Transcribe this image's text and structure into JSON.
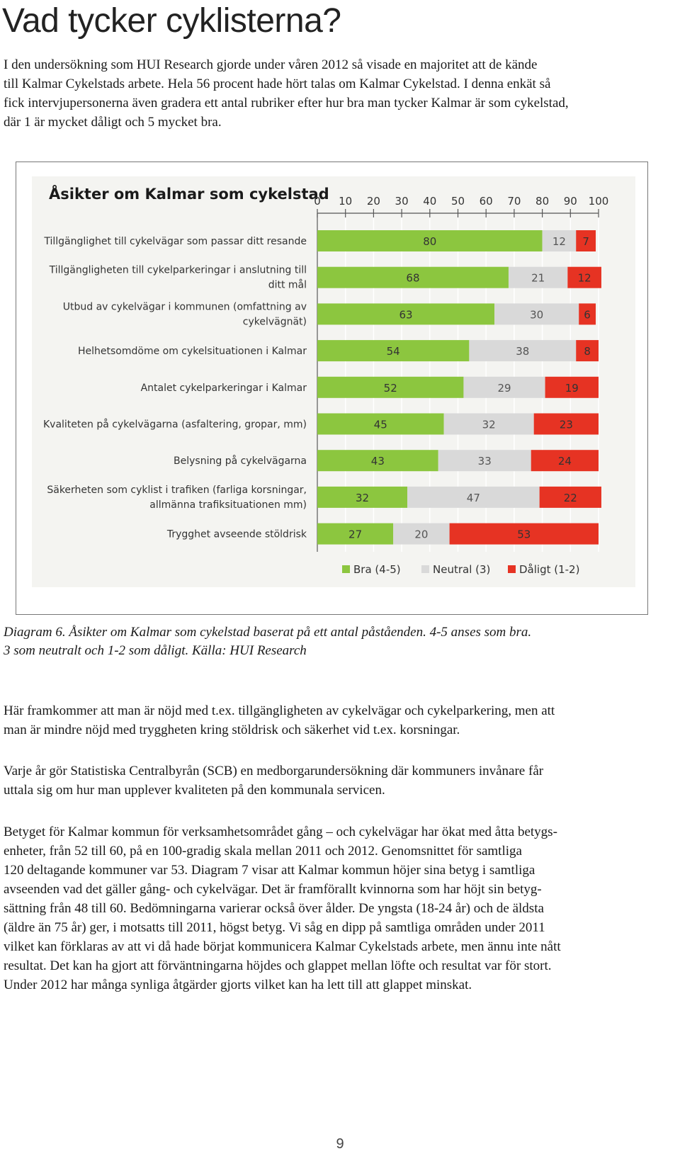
{
  "page": {
    "title": "Vad tycker cyklisterna?",
    "intro_lines": [
      "I den undersökning som HUI Research gjorde under våren 2012 så visade en majoritet att de kände",
      "till Kalmar Cykelstads arbete. Hela 56 procent hade hört talas om Kalmar Cykelstad. I denna enkät så",
      "fick intervjupersonerna även gradera ett antal rubriker efter hur bra man tycker Kalmar är som cykelstad,",
      "där 1 är mycket dåligt och 5 mycket bra."
    ],
    "caption_lines": [
      "Diagram 6. Åsikter om Kalmar som cykelstad baserat på ett antal påståenden. 4-5 anses som bra.",
      "3 som neutralt och 1-2 som dåligt. Källa: HUI Research"
    ],
    "para2_lines": [
      "Här framkommer att man är nöjd med t.ex. tillgängligheten av cykelvägar och cykelparkering, men att",
      "man är mindre nöjd med tryggheten kring stöldrisk och säkerhet vid t.ex. korsningar."
    ],
    "para3_lines": [
      "Varje år gör Statistiska Centralbyrån (SCB) en medborgarundersökning där kommuners invånare får",
      "uttala sig om hur man upplever kvaliteten på den kommunala servicen."
    ],
    "para4_lines": [
      "Betyget för Kalmar kommun för verksamhetsområdet gång – och cykelvägar har ökat med åtta betygs-",
      "enheter, från 52 till 60, på en 100-gradig skala mellan 2011 och 2012. Genomsnittet för samtliga",
      "120 deltagande kommuner var 53. Diagram 7 visar att Kalmar kommun höjer sina betyg i samtliga",
      "avseenden vad det gäller gång- och cykelvägar. Det är framförallt kvinnorna som har höjt sin betyg-",
      "sättning från 48 till 60. Bedömningarna varierar också över ålder. De yngsta (18-24 år) och de äldsta",
      "(äldre än 75 år) ger, i motsatts till 2011, högst betyg. Vi såg en dipp på samtliga områden under 2011",
      "vilket kan förklaras av att vi då hade börjat kommunicera Kalmar Cykelstads arbete, men ännu inte nått",
      "resultat. Det kan ha gjort att förväntningarna höjdes och glappet mellan löfte och resultat var för stort.",
      "Under 2012 har många synliga åtgärder gjorts vilket kan ha lett till att glappet minskat."
    ],
    "page_number": "9"
  },
  "chart_data": {
    "type": "bar",
    "stacked": true,
    "orientation": "horizontal",
    "title": "Åsikter om Kalmar som cykelstad",
    "xlim": [
      0,
      100
    ],
    "xticks": [
      0,
      10,
      20,
      30,
      40,
      50,
      60,
      70,
      80,
      90,
      100
    ],
    "grid": true,
    "legend_position": "bottom",
    "categories": [
      [
        "Tillgänglighet till cykelvägar som passar ditt resande"
      ],
      [
        "Tillgängligheten till cykelparkeringar i anslutning till",
        "ditt mål"
      ],
      [
        "Utbud av cykelvägar i kommunen (omfattning av",
        "cykelvägnät)"
      ],
      [
        "Helhetsomdöme om cykelsituationen i Kalmar"
      ],
      [
        "Antalet cykelparkeringar i Kalmar"
      ],
      [
        "Kvaliteten på cykelvägarna (asfaltering, gropar, mm)"
      ],
      [
        "Belysning på cykelvägarna"
      ],
      [
        "Säkerheten som cyklist i trafiken (farliga korsningar,",
        "allmänna trafiksituationen mm)"
      ],
      [
        "Trygghet avseende stöldrisk"
      ]
    ],
    "series": [
      {
        "name": "Bra (4-5)",
        "color": "#8cc63f",
        "values": [
          80,
          68,
          63,
          54,
          52,
          45,
          43,
          32,
          27
        ]
      },
      {
        "name": "Neutral (3)",
        "color": "#d9d9d9",
        "values": [
          12,
          21,
          30,
          38,
          29,
          32,
          33,
          47,
          20
        ]
      },
      {
        "name": "Dåligt (1-2)",
        "color": "#e63323",
        "values": [
          7,
          12,
          6,
          8,
          19,
          23,
          24,
          22,
          53
        ]
      }
    ]
  }
}
